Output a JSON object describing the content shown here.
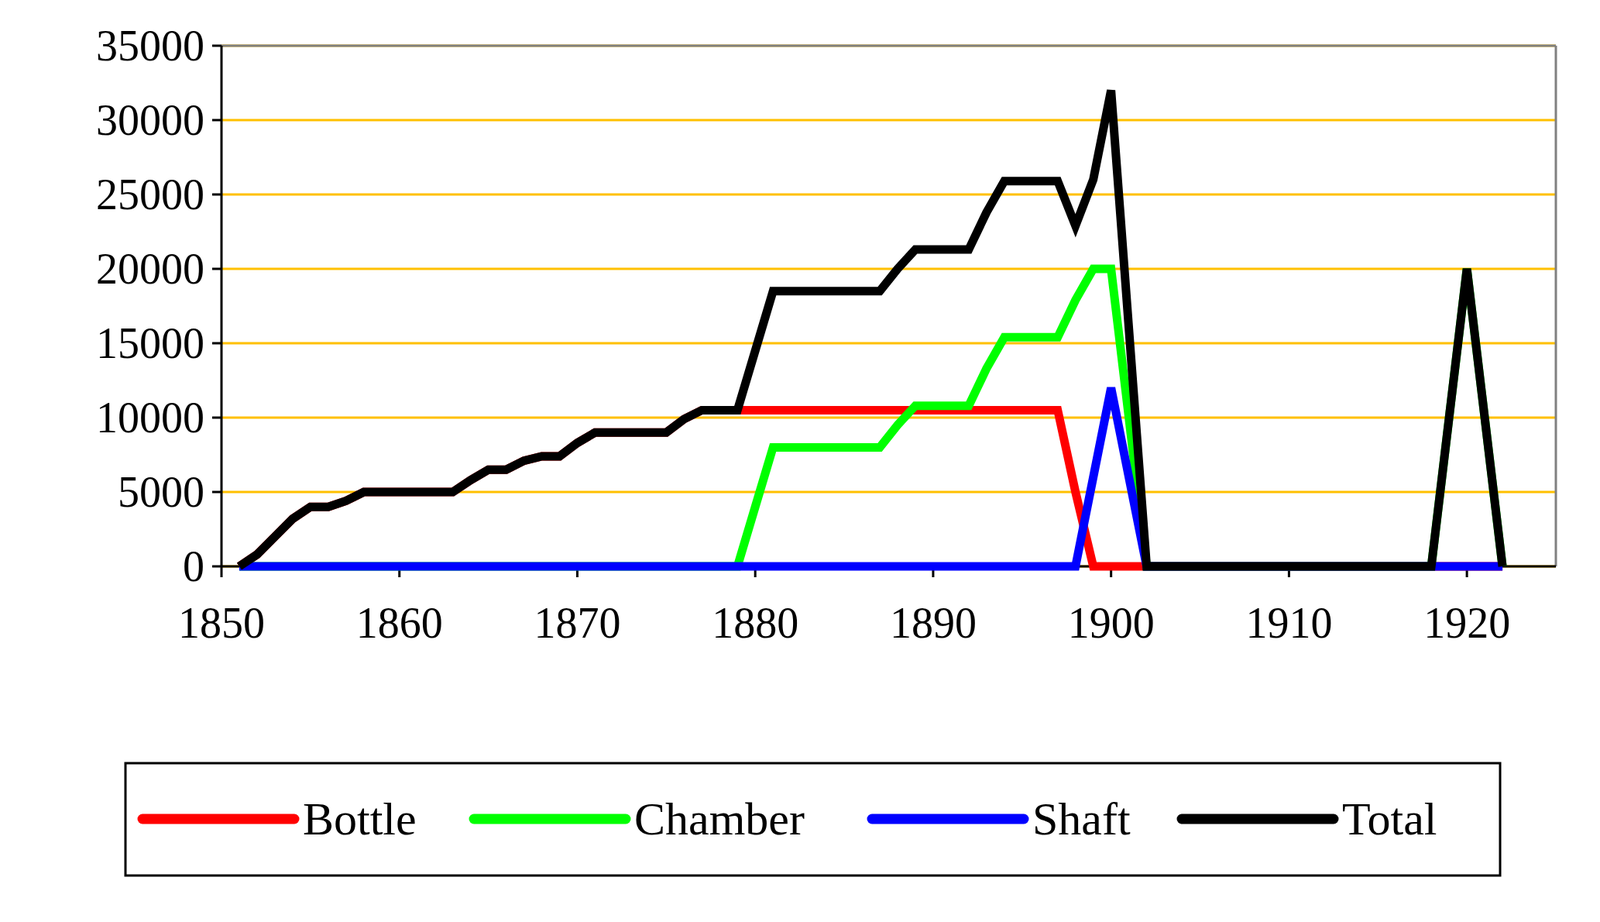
{
  "chart_data": {
    "type": "line",
    "x": [
      1851,
      1852,
      1853,
      1854,
      1855,
      1856,
      1857,
      1858,
      1859,
      1860,
      1861,
      1862,
      1863,
      1864,
      1865,
      1866,
      1867,
      1868,
      1869,
      1870,
      1871,
      1872,
      1873,
      1874,
      1875,
      1876,
      1877,
      1878,
      1879,
      1880,
      1881,
      1882,
      1883,
      1884,
      1885,
      1886,
      1887,
      1888,
      1889,
      1890,
      1891,
      1892,
      1893,
      1894,
      1895,
      1896,
      1897,
      1898,
      1899,
      1900,
      1901,
      1902,
      1903,
      1904,
      1905,
      1906,
      1907,
      1908,
      1909,
      1910,
      1911,
      1912,
      1913,
      1914,
      1915,
      1916,
      1917,
      1918,
      1919,
      1920,
      1921,
      1922
    ],
    "series": [
      {
        "name": "Bottle",
        "color": "#ff0000",
        "values": [
          0,
          800,
          2000,
          3200,
          4000,
          4000,
          4400,
          5000,
          5000,
          5000,
          5000,
          5000,
          5000,
          5800,
          6500,
          6500,
          7100,
          7400,
          7400,
          8300,
          9000,
          9000,
          9000,
          9000,
          9000,
          9900,
          10500,
          10500,
          10500,
          10500,
          10500,
          10500,
          10500,
          10500,
          10500,
          10500,
          10500,
          10500,
          10500,
          10500,
          10500,
          10500,
          10500,
          10500,
          10500,
          10500,
          10500,
          5000,
          0,
          0,
          0,
          0,
          0,
          0,
          0,
          0,
          0,
          0,
          0,
          0,
          0,
          0,
          0,
          0,
          0,
          0,
          0,
          0,
          0,
          0,
          0,
          0
        ]
      },
      {
        "name": "Chamber",
        "color": "#00ff00",
        "values": [
          0,
          0,
          0,
          0,
          0,
          0,
          0,
          0,
          0,
          0,
          0,
          0,
          0,
          0,
          0,
          0,
          0,
          0,
          0,
          0,
          0,
          0,
          0,
          0,
          0,
          0,
          0,
          0,
          0,
          4000,
          8000,
          8000,
          8000,
          8000,
          8000,
          8000,
          8000,
          9500,
          10800,
          10800,
          10800,
          10800,
          13300,
          15400,
          15400,
          15400,
          15400,
          17900,
          20000,
          20000,
          10000,
          0,
          0,
          0,
          0,
          0,
          0,
          0,
          0,
          0,
          0,
          0,
          0,
          0,
          0,
          0,
          0,
          0,
          10000,
          20000,
          10000,
          0
        ]
      },
      {
        "name": "Shaft",
        "color": "#0000ff",
        "values": [
          0,
          0,
          0,
          0,
          0,
          0,
          0,
          0,
          0,
          0,
          0,
          0,
          0,
          0,
          0,
          0,
          0,
          0,
          0,
          0,
          0,
          0,
          0,
          0,
          0,
          0,
          0,
          0,
          0,
          0,
          0,
          0,
          0,
          0,
          0,
          0,
          0,
          0,
          0,
          0,
          0,
          0,
          0,
          0,
          0,
          0,
          0,
          0,
          6000,
          12000,
          6000,
          0,
          0,
          0,
          0,
          0,
          0,
          0,
          0,
          0,
          0,
          0,
          0,
          0,
          0,
          0,
          0,
          0,
          0,
          0,
          0,
          0
        ]
      },
      {
        "name": "Total",
        "color": "#000000",
        "values": [
          0,
          800,
          2000,
          3200,
          4000,
          4000,
          4400,
          5000,
          5000,
          5000,
          5000,
          5000,
          5000,
          5800,
          6500,
          6500,
          7100,
          7400,
          7400,
          8300,
          9000,
          9000,
          9000,
          9000,
          9000,
          9900,
          10500,
          10500,
          10500,
          14500,
          18500,
          18500,
          18500,
          18500,
          18500,
          18500,
          18500,
          20000,
          21300,
          21300,
          21300,
          21300,
          23800,
          25900,
          25900,
          25900,
          25900,
          22900,
          26000,
          32000,
          16000,
          0,
          0,
          0,
          0,
          0,
          0,
          0,
          0,
          0,
          0,
          0,
          0,
          0,
          0,
          0,
          0,
          0,
          10000,
          20000,
          10000,
          0
        ]
      }
    ],
    "xlim": [
      1850,
      1925
    ],
    "xticks": [
      1850,
      1860,
      1870,
      1880,
      1890,
      1900,
      1910,
      1920
    ],
    "ylim": [
      0,
      35000
    ],
    "yticks": [
      0,
      5000,
      10000,
      15000,
      20000,
      25000,
      30000,
      35000
    ],
    "grid": true,
    "legend": "bottom"
  }
}
